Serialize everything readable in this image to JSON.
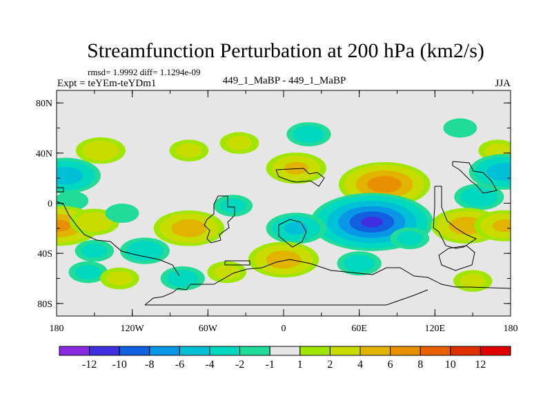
{
  "chart_data": {
    "type": "heatmap",
    "title": "Streamfunction Perturbation at 200 hPa (km2/s)",
    "stats_line": "rmsd= 1.9992 diff= 1.1294e-09",
    "left_label": "Expt = teYEm-teYDm1",
    "center_label": "449_1_MaBP - 449_1_MaBP",
    "right_label": "JJA",
    "x_ticks": [
      {
        "value": -180,
        "label": "180"
      },
      {
        "value": -120,
        "label": "120W"
      },
      {
        "value": -60,
        "label": "60W"
      },
      {
        "value": 0,
        "label": "0"
      },
      {
        "value": 60,
        "label": "60E"
      },
      {
        "value": 120,
        "label": "120E"
      },
      {
        "value": 180,
        "label": "180"
      }
    ],
    "y_ticks": [
      {
        "value": 80,
        "label": "80N"
      },
      {
        "value": 40,
        "label": "40N"
      },
      {
        "value": 0,
        "label": "0"
      },
      {
        "value": -40,
        "label": "40S"
      },
      {
        "value": -80,
        "label": "80S"
      }
    ],
    "xlim": [
      -180,
      180
    ],
    "ylim": [
      -90,
      90
    ],
    "contour_levels": [
      -12,
      -10,
      -8,
      -6,
      -4,
      -2,
      -1,
      1,
      2,
      4,
      6,
      8,
      10,
      12
    ],
    "colorbar_labels": [
      "-12",
      "-10",
      "-8",
      "-6",
      "-4",
      "-2",
      "-1",
      "1",
      "2",
      "4",
      "6",
      "8",
      "10",
      "12"
    ],
    "colors": [
      "#8a2be2",
      "#3f2fe0",
      "#1060e0",
      "#0a96e6",
      "#00c0d8",
      "#00d8c0",
      "#20dc98",
      "#e6e6e6",
      "#a0e600",
      "#c8dc00",
      "#e0b400",
      "#e89000",
      "#e86000",
      "#e03000",
      "#e00000"
    ],
    "anomalies": [
      {
        "lon": -173,
        "lat": 22,
        "value": -5
      },
      {
        "lon": -168,
        "lat": 2,
        "value": -1.5
      },
      {
        "lon": -145,
        "lat": 42,
        "value": 3
      },
      {
        "lon": -155,
        "lat": -55,
        "value": -2
      },
      {
        "lon": -75,
        "lat": 42,
        "value": 2
      },
      {
        "lon": -35,
        "lat": 48,
        "value": 2
      },
      {
        "lon": 20,
        "lat": 55,
        "value": -2.5
      },
      {
        "lon": 10,
        "lat": 28,
        "value": 4
      },
      {
        "lon": 80,
        "lat": 15,
        "value": 7
      },
      {
        "lon": 140,
        "lat": 60,
        "value": -1.5
      },
      {
        "lon": 170,
        "lat": 42,
        "value": 2
      },
      {
        "lon": 175,
        "lat": 25,
        "value": -5
      },
      {
        "lon": 155,
        "lat": 5,
        "value": -3
      },
      {
        "lon": -178,
        "lat": -18,
        "value": 6
      },
      {
        "lon": -150,
        "lat": -15,
        "value": 3
      },
      {
        "lon": -75,
        "lat": -20,
        "value": 5
      },
      {
        "lon": -128,
        "lat": -8,
        "value": -1.5
      },
      {
        "lon": -40,
        "lat": -2,
        "value": -2
      },
      {
        "lon": 70,
        "lat": -15,
        "value": -10
      },
      {
        "lon": 10,
        "lat": -20,
        "value": -4
      },
      {
        "lon": 145,
        "lat": -18,
        "value": 5
      },
      {
        "lon": 175,
        "lat": -18,
        "value": 4
      },
      {
        "lon": 100,
        "lat": -28,
        "value": -2
      },
      {
        "lon": -110,
        "lat": -38,
        "value": -3
      },
      {
        "lon": -150,
        "lat": -38,
        "value": -2
      },
      {
        "lon": 0,
        "lat": -45,
        "value": 5
      },
      {
        "lon": 60,
        "lat": -48,
        "value": -2.5
      },
      {
        "lon": -80,
        "lat": -60,
        "value": -2.5
      },
      {
        "lon": -130,
        "lat": -60,
        "value": 2
      },
      {
        "lon": -45,
        "lat": -55,
        "value": 2
      },
      {
        "lon": 150,
        "lat": -62,
        "value": 2
      }
    ]
  }
}
